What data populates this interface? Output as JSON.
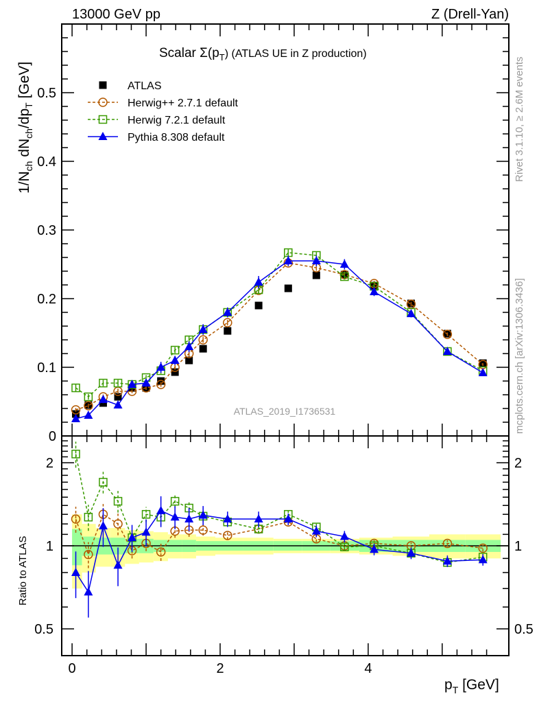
{
  "header": {
    "left": "13000 GeV pp",
    "right": "Z (Drell-Yan)"
  },
  "side": {
    "rivet": "Rivet 3.1.10, ≥ 2.6M events",
    "mcplots": "mcplots.cern.ch [arXiv:1306.3436]"
  },
  "watermark": "ATLAS_2019_I1736531",
  "colors": {
    "data": "#000000",
    "herwigpp": "#b35900",
    "herwig7": "#3a9a00",
    "pythia": "#0000ee",
    "band_total": "#ffff99",
    "band_stat": "#99ff99"
  },
  "chart_data": [
    {
      "type": "scatter",
      "title": "Scalar Σ(p_T) (ATLAS UE in Z production)",
      "title_main": "Scalar Σ(p",
      "title_sub": "T",
      "title_rest": ") (ATLAS UE in Z production)",
      "ylabel": "1/N_ch dN_ch/dp_T [GeV]",
      "xlabel": "p_T [GeV]",
      "xlim": [
        -0.14,
        5.9
      ],
      "ylim": [
        0,
        0.6
      ],
      "yticks": [
        "0",
        "0.1",
        "0.2",
        "0.3",
        "0.4",
        "0.5"
      ],
      "xticks": [
        "0",
        "2",
        "4"
      ],
      "legend_position": "top-left",
      "x": [
        0.05,
        0.22,
        0.42,
        0.62,
        0.81,
        1.0,
        1.2,
        1.39,
        1.58,
        1.77,
        2.1,
        2.52,
        2.92,
        3.3,
        3.68,
        4.08,
        4.58,
        5.07,
        5.55
      ],
      "series": [
        {
          "name": "ATLAS",
          "key": "data",
          "marker": "filled-square",
          "values": [
            0.032,
            0.045,
            0.048,
            0.057,
            0.07,
            0.07,
            0.08,
            0.093,
            0.11,
            0.127,
            0.153,
            0.19,
            0.215,
            0.234,
            0.235,
            0.219,
            0.193,
            0.149,
            0.106
          ]
        },
        {
          "name": "Herwig++ 2.7.1 default",
          "key": "herwigpp",
          "marker": "open-circle",
          "values": [
            0.038,
            0.044,
            0.057,
            0.065,
            0.065,
            0.07,
            0.075,
            0.1,
            0.12,
            0.14,
            0.165,
            0.212,
            0.252,
            0.245,
            0.235,
            0.222,
            0.192,
            0.148,
            0.104
          ]
        },
        {
          "name": "Herwig 7.2.1 default",
          "key": "herwig7",
          "marker": "open-square",
          "values": [
            0.07,
            0.057,
            0.077,
            0.077,
            0.075,
            0.085,
            0.095,
            0.125,
            0.14,
            0.155,
            0.18,
            0.213,
            0.267,
            0.263,
            0.232,
            0.218,
            0.18,
            0.123,
            0.095
          ]
        },
        {
          "name": "Pythia 8.308 default",
          "key": "pythia",
          "marker": "filled-triangle",
          "values": [
            0.025,
            0.03,
            0.053,
            0.045,
            0.075,
            0.077,
            0.1,
            0.11,
            0.13,
            0.155,
            0.18,
            0.224,
            0.255,
            0.255,
            0.25,
            0.21,
            0.178,
            0.123,
            0.092
          ]
        }
      ],
      "rel_err": [
        0.12,
        0.12,
        0.1,
        0.1,
        0.07,
        0.07,
        0.08,
        0.06,
        0.06,
        0.05,
        0.04,
        0.04,
        0.03,
        0.03,
        0.03,
        0.03,
        0.03,
        0.03,
        0.03
      ]
    },
    {
      "type": "scatter",
      "ylabel": "Ratio to ATLAS",
      "ylim": [
        0.4,
        2.5
      ],
      "yscale": "log",
      "yticks": [
        "0.5",
        "1",
        "2"
      ],
      "band_total": [
        0.3,
        0.2,
        0.16,
        0.16,
        0.14,
        0.13,
        0.12,
        0.1,
        0.1,
        0.08,
        0.07,
        0.07,
        0.06,
        0.06,
        0.06,
        0.07,
        0.08,
        0.1,
        0.1
      ],
      "band_stat": [
        0.15,
        0.08,
        0.07,
        0.07,
        0.06,
        0.06,
        0.05,
        0.05,
        0.05,
        0.04,
        0.04,
        0.04,
        0.04,
        0.04,
        0.04,
        0.05,
        0.05,
        0.05,
        0.05
      ],
      "series": [
        {
          "key": "herwigpp",
          "values": [
            1.25,
            0.93,
            1.3,
            1.2,
            0.96,
            1.02,
            0.95,
            1.13,
            1.14,
            1.14,
            1.09,
            1.15,
            1.22,
            1.06,
            1.0,
            1.02,
            1.0,
            1.02,
            0.98
          ]
        },
        {
          "key": "herwig7",
          "values": [
            2.15,
            1.27,
            1.7,
            1.45,
            1.07,
            1.3,
            1.27,
            1.45,
            1.37,
            1.28,
            1.22,
            1.15,
            1.3,
            1.17,
            0.99,
            1.0,
            0.94,
            0.87,
            0.91
          ]
        },
        {
          "key": "pythia",
          "values": [
            0.8,
            0.68,
            1.18,
            0.85,
            1.07,
            1.12,
            1.34,
            1.27,
            1.25,
            1.29,
            1.25,
            1.25,
            1.25,
            1.13,
            1.08,
            0.97,
            0.94,
            0.88,
            0.89
          ]
        }
      ]
    }
  ]
}
